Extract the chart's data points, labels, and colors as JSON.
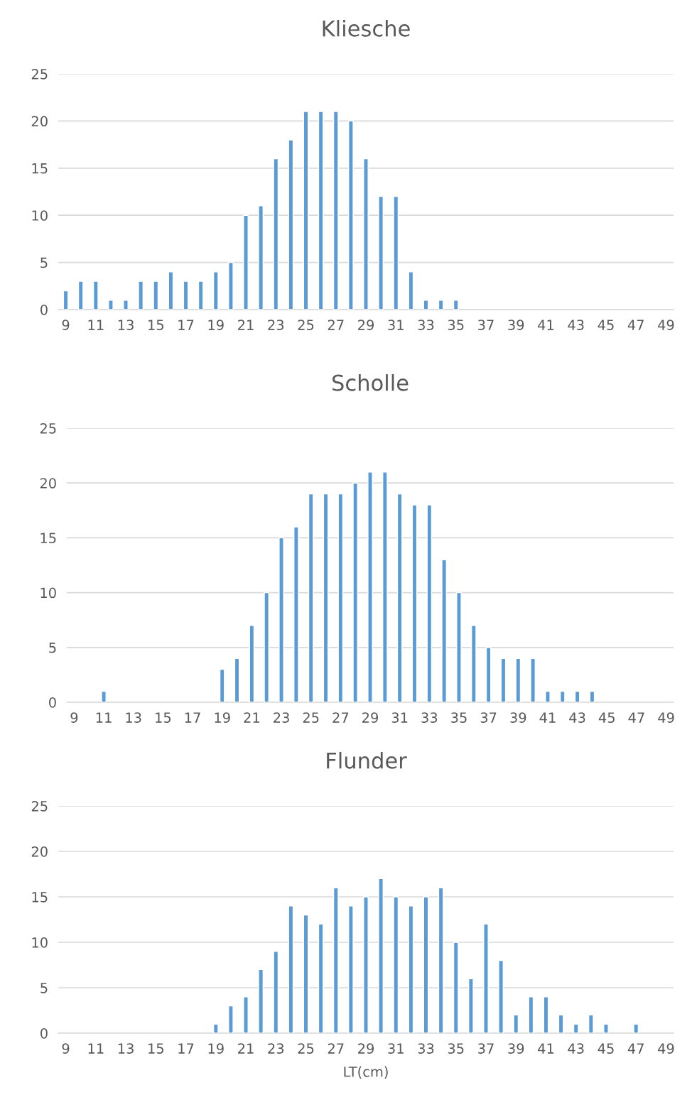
{
  "chart_data": [
    {
      "type": "bar",
      "title": "Kliesche",
      "categories": [
        "9",
        null,
        "11",
        null,
        "13",
        null,
        "15",
        null,
        "17",
        null,
        "19",
        null,
        "21",
        null,
        "23",
        null,
        "25",
        null,
        "27",
        null,
        "29",
        null,
        "31",
        null,
        "33",
        null,
        "35",
        null,
        "37",
        null,
        "39",
        null,
        "41",
        null,
        "43",
        null,
        "45",
        null,
        "47",
        null,
        "49"
      ],
      "values": [
        2,
        3,
        3,
        1,
        1,
        3,
        3,
        4,
        3,
        3,
        4,
        5,
        10,
        11,
        16,
        18,
        21,
        21,
        21,
        20,
        16,
        12,
        12,
        4,
        1,
        1,
        1,
        0,
        0,
        0,
        0,
        0,
        0,
        0,
        0,
        0,
        0,
        0,
        0,
        0,
        0
      ],
      "color": "#5b9bd5",
      "ylim": [
        0,
        25
      ],
      "yticks": [
        0,
        5,
        10,
        15,
        20,
        25
      ],
      "grid": "y",
      "legend": false
    },
    {
      "type": "bar",
      "title": "Scholle",
      "categories": [
        "9",
        null,
        "11",
        null,
        "13",
        null,
        "15",
        null,
        "17",
        null,
        "19",
        null,
        "21",
        null,
        "23",
        null,
        "25",
        null,
        "27",
        null,
        "29",
        null,
        "31",
        null,
        "33",
        null,
        "35",
        null,
        "37",
        null,
        "39",
        null,
        "41",
        null,
        "43",
        null,
        "45",
        null,
        "47",
        null,
        "49"
      ],
      "values": [
        0,
        0,
        1,
        0,
        0,
        0,
        0,
        0,
        0,
        0,
        3,
        4,
        7,
        10,
        15,
        16,
        19,
        19,
        19,
        20,
        21,
        21,
        19,
        18,
        18,
        13,
        10,
        7,
        5,
        4,
        4,
        4,
        1,
        1,
        1,
        1,
        0,
        0,
        0,
        0,
        0
      ],
      "color": "#5b9bd5",
      "ylim": [
        0,
        25
      ],
      "yticks": [
        0,
        5,
        10,
        15,
        20,
        25
      ],
      "grid": "y",
      "legend": false
    },
    {
      "type": "bar",
      "title": "Flunder",
      "xlabel": "LT(cm)",
      "categories": [
        "9",
        null,
        "11",
        null,
        "13",
        null,
        "15",
        null,
        "17",
        null,
        "19",
        null,
        "21",
        null,
        "23",
        null,
        "25",
        null,
        "27",
        null,
        "29",
        null,
        "31",
        null,
        "33",
        null,
        "35",
        null,
        "37",
        null,
        "39",
        null,
        "41",
        null,
        "43",
        null,
        "45",
        null,
        "47",
        null,
        "49"
      ],
      "values": [
        0,
        0,
        0,
        0,
        0,
        0,
        0,
        0,
        0,
        0,
        1,
        3,
        4,
        7,
        9,
        14,
        13,
        12,
        16,
        14,
        15,
        17,
        15,
        14,
        15,
        16,
        10,
        6,
        12,
        8,
        2,
        4,
        4,
        2,
        1,
        2,
        1,
        0,
        1,
        0,
        0
      ],
      "color": "#5b9bd5",
      "ylim": [
        0,
        25
      ],
      "yticks": [
        0,
        5,
        10,
        15,
        20,
        25
      ],
      "grid": "y",
      "legend": false
    }
  ]
}
